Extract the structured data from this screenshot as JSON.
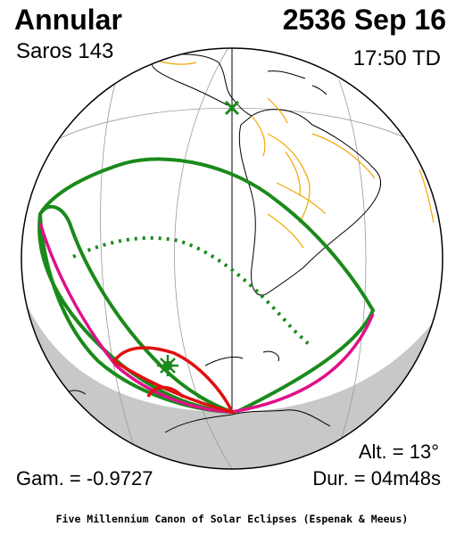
{
  "header": {
    "eclipse_type": "Annular",
    "date": "2536 Sep 16",
    "saros": "Saros 143",
    "time": "17:50 TD"
  },
  "stats": {
    "altitude": "Alt. = 13°",
    "gamma": "Gam. = -0.9727",
    "duration": "Dur. = 04m48s"
  },
  "footer": "Five Millennium Canon of Solar Eclipses (Espenak & Meeus)",
  "colors": {
    "night_shadow": "#c8c8c8",
    "coastline": "#000000",
    "borders": "#f0a800",
    "penumbra_outer": "#1a8a1a",
    "penumbra_inner": "#e0108a",
    "greatest_eclipse_zone": "#e01010",
    "central_path": "#1a8a1a",
    "subsolar_marker": "#1a8a1a"
  },
  "markers": {
    "greatest_eclipse_icon": "star-burst",
    "subsolar_icon": "x-cross"
  }
}
